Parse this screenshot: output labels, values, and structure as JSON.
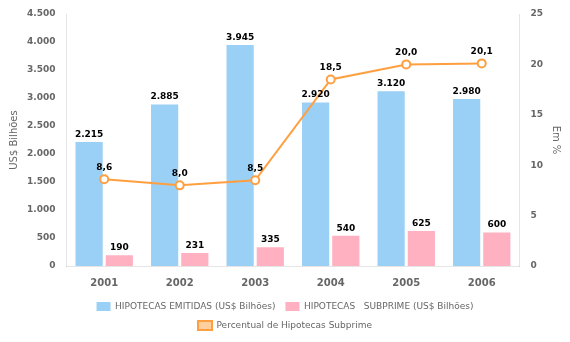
{
  "chart_data": {
    "type": "bar",
    "categories": [
      "2001",
      "2002",
      "2003",
      "2004",
      "2005",
      "2006"
    ],
    "series": [
      {
        "name": "HIPOTECAS EMITIDAS (US$ Bilhões)",
        "values": [
          2215,
          2885,
          3945,
          2920,
          3120,
          2980
        ],
        "value_labels": [
          "2.215",
          "2.885",
          "3.945",
          "2.920",
          "3.120",
          "2.980"
        ]
      },
      {
        "name": "HIPOTECAS   SUBPRIME (US$ Bilhões)",
        "values": [
          190,
          231,
          335,
          540,
          625,
          600
        ]
      },
      {
        "name": "Percentual de Hipotecas Subprime",
        "type": "line",
        "axis": "y2",
        "marker": "circle",
        "values": [
          8.6,
          8.0,
          8.5,
          18.5,
          20.0,
          20.1
        ],
        "value_labels": [
          "8,6",
          "8,0",
          "8,5",
          "18,5",
          "20,0",
          "20,1"
        ]
      }
    ],
    "ylabel": "US$ Bilhões",
    "y2label": "Em %",
    "ylim": [
      0,
      4500
    ],
    "yticks": [
      0,
      500,
      {
        "value": 1000,
        "label": "1.000"
      },
      {
        "value": 1500,
        "label": "1.500"
      },
      {
        "value": 2000,
        "label": "2.000"
      },
      {
        "value": 2500,
        "label": "2.500"
      },
      {
        "value": 3000,
        "label": "3.000"
      },
      {
        "value": 3500,
        "label": "3.500"
      },
      {
        "value": 4000,
        "label": "4.000"
      },
      {
        "value": 4500,
        "label": "4.500"
      }
    ],
    "y2lim": [
      0,
      25
    ],
    "y2ticks": [
      0,
      5,
      10,
      15,
      20,
      25
    ],
    "grid": false,
    "legend": "bottom",
    "data_labels": true
  }
}
